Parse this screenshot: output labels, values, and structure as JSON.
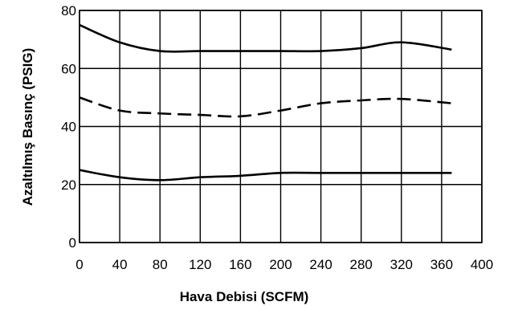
{
  "chart_data": {
    "type": "line",
    "title": "",
    "xlabel": "Hava Debisi (SCFM)",
    "ylabel": "Azaltılmış Basınç (PSIG)",
    "xlim": [
      0,
      400
    ],
    "ylim": [
      0,
      80
    ],
    "xticks": [
      "0",
      "40",
      "80",
      "120",
      "160",
      "200",
      "240",
      "280",
      "320",
      "360",
      "400"
    ],
    "yticks": [
      "0",
      "20",
      "40",
      "60",
      "80"
    ],
    "grid": true,
    "series": [
      {
        "style": "solid",
        "x": [
          0,
          40,
          80,
          120,
          160,
          200,
          240,
          280,
          320,
          370
        ],
        "y": [
          75,
          69,
          66,
          66,
          66,
          66,
          66,
          67,
          69,
          66.5
        ]
      },
      {
        "style": "dashed",
        "x": [
          0,
          40,
          80,
          120,
          160,
          200,
          240,
          280,
          320,
          370
        ],
        "y": [
          50,
          45.5,
          44.5,
          44,
          43.5,
          45.5,
          48,
          49,
          49.5,
          48
        ]
      },
      {
        "style": "solid",
        "x": [
          0,
          40,
          80,
          120,
          160,
          200,
          240,
          280,
          320,
          370
        ],
        "y": [
          25,
          22.5,
          21.5,
          22.5,
          23,
          24,
          24,
          24,
          24,
          24
        ]
      }
    ]
  }
}
